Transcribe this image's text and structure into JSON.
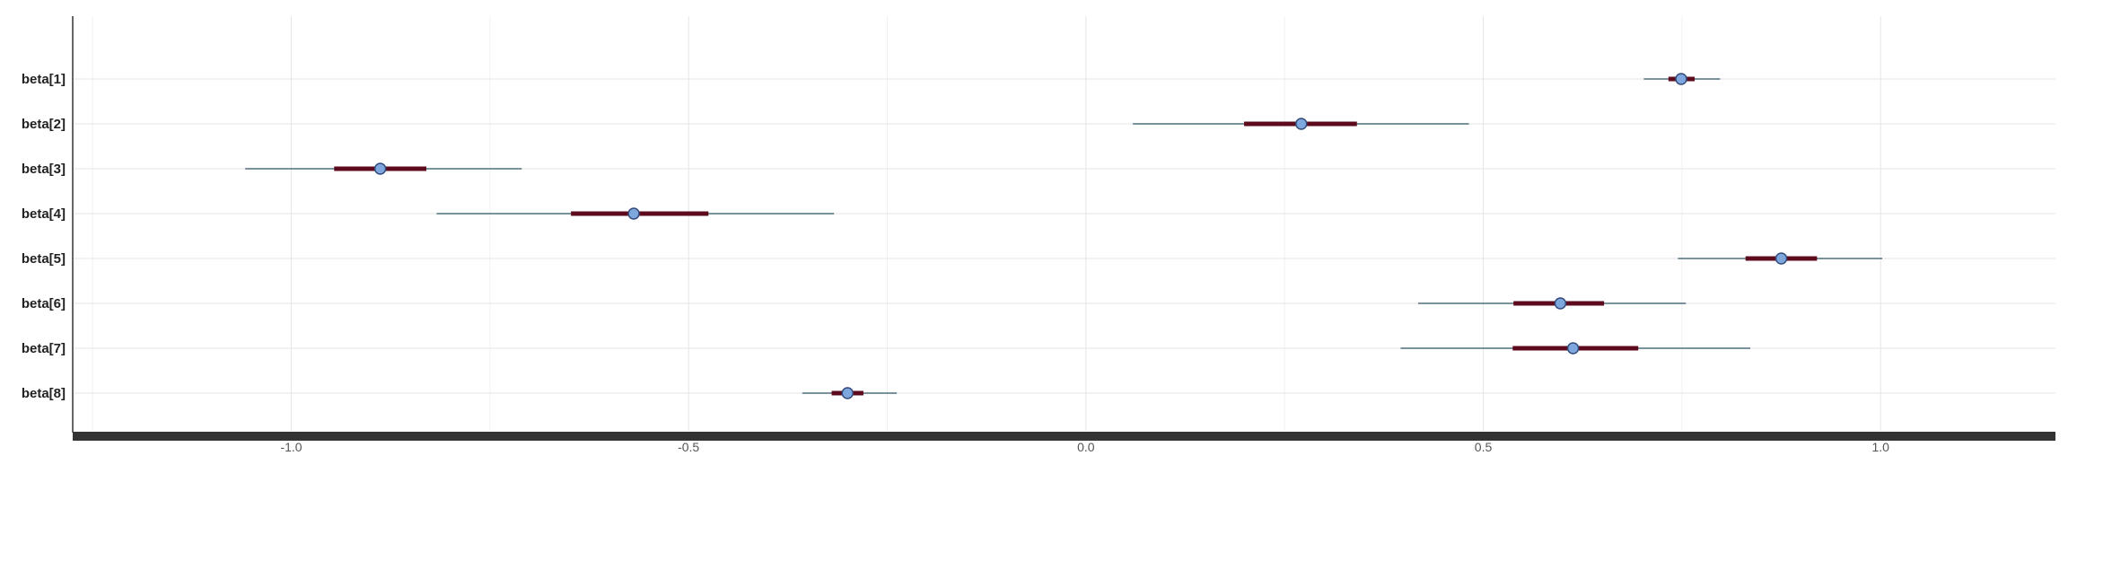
{
  "chart_data": {
    "type": "interval",
    "parameters": [
      "beta[1]",
      "beta[2]",
      "beta[3]",
      "beta[4]",
      "beta[5]",
      "beta[6]",
      "beta[7]",
      "beta[8]"
    ],
    "estimates": [
      0.749,
      0.271,
      -0.888,
      -0.569,
      0.875,
      0.597,
      0.613,
      -0.3
    ],
    "inner_intervals": [
      [
        0.733,
        0.766
      ],
      [
        0.199,
        0.341
      ],
      [
        -0.946,
        -0.83
      ],
      [
        -0.648,
        -0.475
      ],
      [
        0.83,
        0.92
      ],
      [
        0.538,
        0.652
      ],
      [
        0.537,
        0.695
      ],
      [
        -0.32,
        -0.28
      ]
    ],
    "outer_intervals": [
      [
        0.702,
        0.798
      ],
      [
        0.059,
        0.482
      ],
      [
        -1.058,
        -0.71
      ],
      [
        -0.817,
        -0.317
      ],
      [
        0.745,
        1.002
      ],
      [
        0.418,
        0.755
      ],
      [
        0.396,
        0.836
      ],
      [
        -0.357,
        -0.238
      ]
    ],
    "x_ticks": [
      "-1.0",
      "-0.5",
      "0.0",
      "0.5",
      "1.0"
    ],
    "x_tick_values": [
      -1.0,
      -0.5,
      0.0,
      0.5,
      1.0
    ],
    "xlim": [
      -1.275,
      1.22
    ],
    "title": "",
    "xlabel": "",
    "ylabel": "",
    "grid": true,
    "colors": {
      "outer_line": "#4f6e7e",
      "inner_line": "#5c0a1c",
      "point_fill": "#7ea8dd",
      "point_stroke": "#334a7a",
      "grid": "#e6e6e6",
      "axis": "#333333"
    }
  }
}
